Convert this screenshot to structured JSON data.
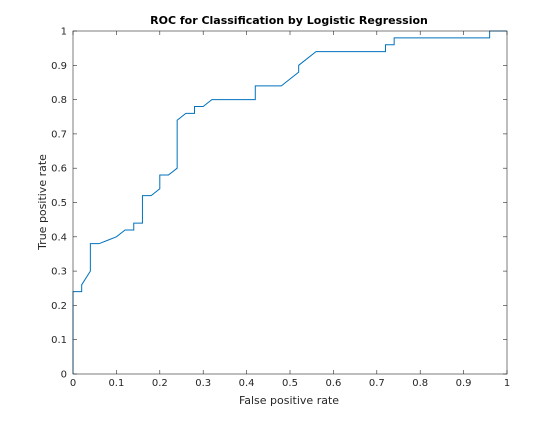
{
  "chart_data": {
    "type": "line",
    "title": "ROC for Classification by Logistic Regression",
    "xlabel": "False positive rate",
    "ylabel": "True positive rate",
    "xlim": [
      0,
      1
    ],
    "ylim": [
      0,
      1
    ],
    "xticks": [
      0,
      0.1,
      0.2,
      0.3,
      0.4,
      0.5,
      0.6,
      0.7,
      0.8,
      0.9,
      1
    ],
    "yticks": [
      0,
      0.1,
      0.2,
      0.3,
      0.4,
      0.5,
      0.6,
      0.7,
      0.8,
      0.9,
      1
    ],
    "xtick_labels": [
      "0",
      "0.1",
      "0.2",
      "0.3",
      "0.4",
      "0.5",
      "0.6",
      "0.7",
      "0.8",
      "0.9",
      "1"
    ],
    "ytick_labels": [
      "0",
      "0.1",
      "0.2",
      "0.3",
      "0.4",
      "0.5",
      "0.6",
      "0.7",
      "0.8",
      "0.9",
      "1"
    ],
    "grid": false,
    "legend": "none",
    "line_color": "#0072BD",
    "series": [
      {
        "x": [
          0,
          0,
          0.02,
          0.02,
          0.04,
          0.04,
          0.06,
          0.08,
          0.1,
          0.12,
          0.14,
          0.14,
          0.16,
          0.16,
          0.18,
          0.2,
          0.2,
          0.22,
          0.24,
          0.24,
          0.26,
          0.28,
          0.28,
          0.3,
          0.32,
          0.42,
          0.42,
          0.48,
          0.5,
          0.52,
          0.52,
          0.56,
          0.72,
          0.72,
          0.74,
          0.74,
          0.96,
          0.96,
          1.0
        ],
        "y": [
          0,
          0.24,
          0.24,
          0.26,
          0.3,
          0.38,
          0.38,
          0.39,
          0.4,
          0.42,
          0.42,
          0.44,
          0.44,
          0.52,
          0.52,
          0.54,
          0.58,
          0.58,
          0.6,
          0.74,
          0.76,
          0.76,
          0.78,
          0.78,
          0.8,
          0.8,
          0.84,
          0.84,
          0.86,
          0.88,
          0.9,
          0.94,
          0.94,
          0.96,
          0.96,
          0.98,
          0.98,
          1.0,
          1.0
        ]
      }
    ]
  }
}
